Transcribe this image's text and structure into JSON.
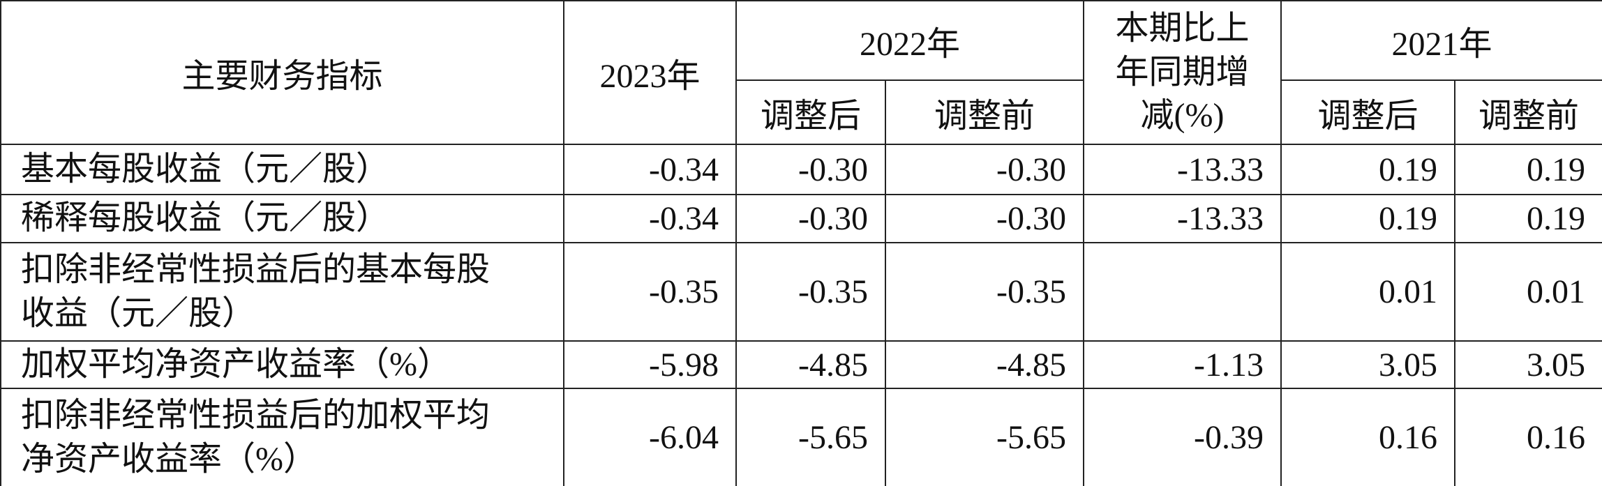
{
  "table": {
    "header": {
      "indicator": "主要财务指标",
      "y2023": "2023年",
      "y2022": "2022年",
      "change": "本期比上年同期增减(%)",
      "y2021": "2021年",
      "sub": [
        "调整后",
        "调整前",
        "调整后",
        "调整前"
      ]
    },
    "rows": [
      [
        "基本每股收益（元／股）",
        "-0.34",
        "-0.30",
        "-0.30",
        "-13.33",
        "0.19",
        "0.19"
      ],
      [
        "稀释每股收益（元／股）",
        "-0.34",
        "-0.30",
        "-0.30",
        "-13.33",
        "0.19",
        "0.19"
      ],
      [
        "扣除非经常性损益后的基本每股收益（元／股）",
        "-0.35",
        "-0.35",
        "-0.35",
        null,
        "0.01",
        "0.01"
      ],
      [
        "加权平均净资产收益率（%）",
        "-5.98",
        "-4.85",
        "-4.85",
        "-1.13",
        "3.05",
        "3.05"
      ],
      [
        "扣除非经常性损益后的加权平均净资产收益率（%）",
        "-6.04",
        "-5.65",
        "-5.65",
        "-0.39",
        "0.16",
        "0.16"
      ]
    ]
  }
}
